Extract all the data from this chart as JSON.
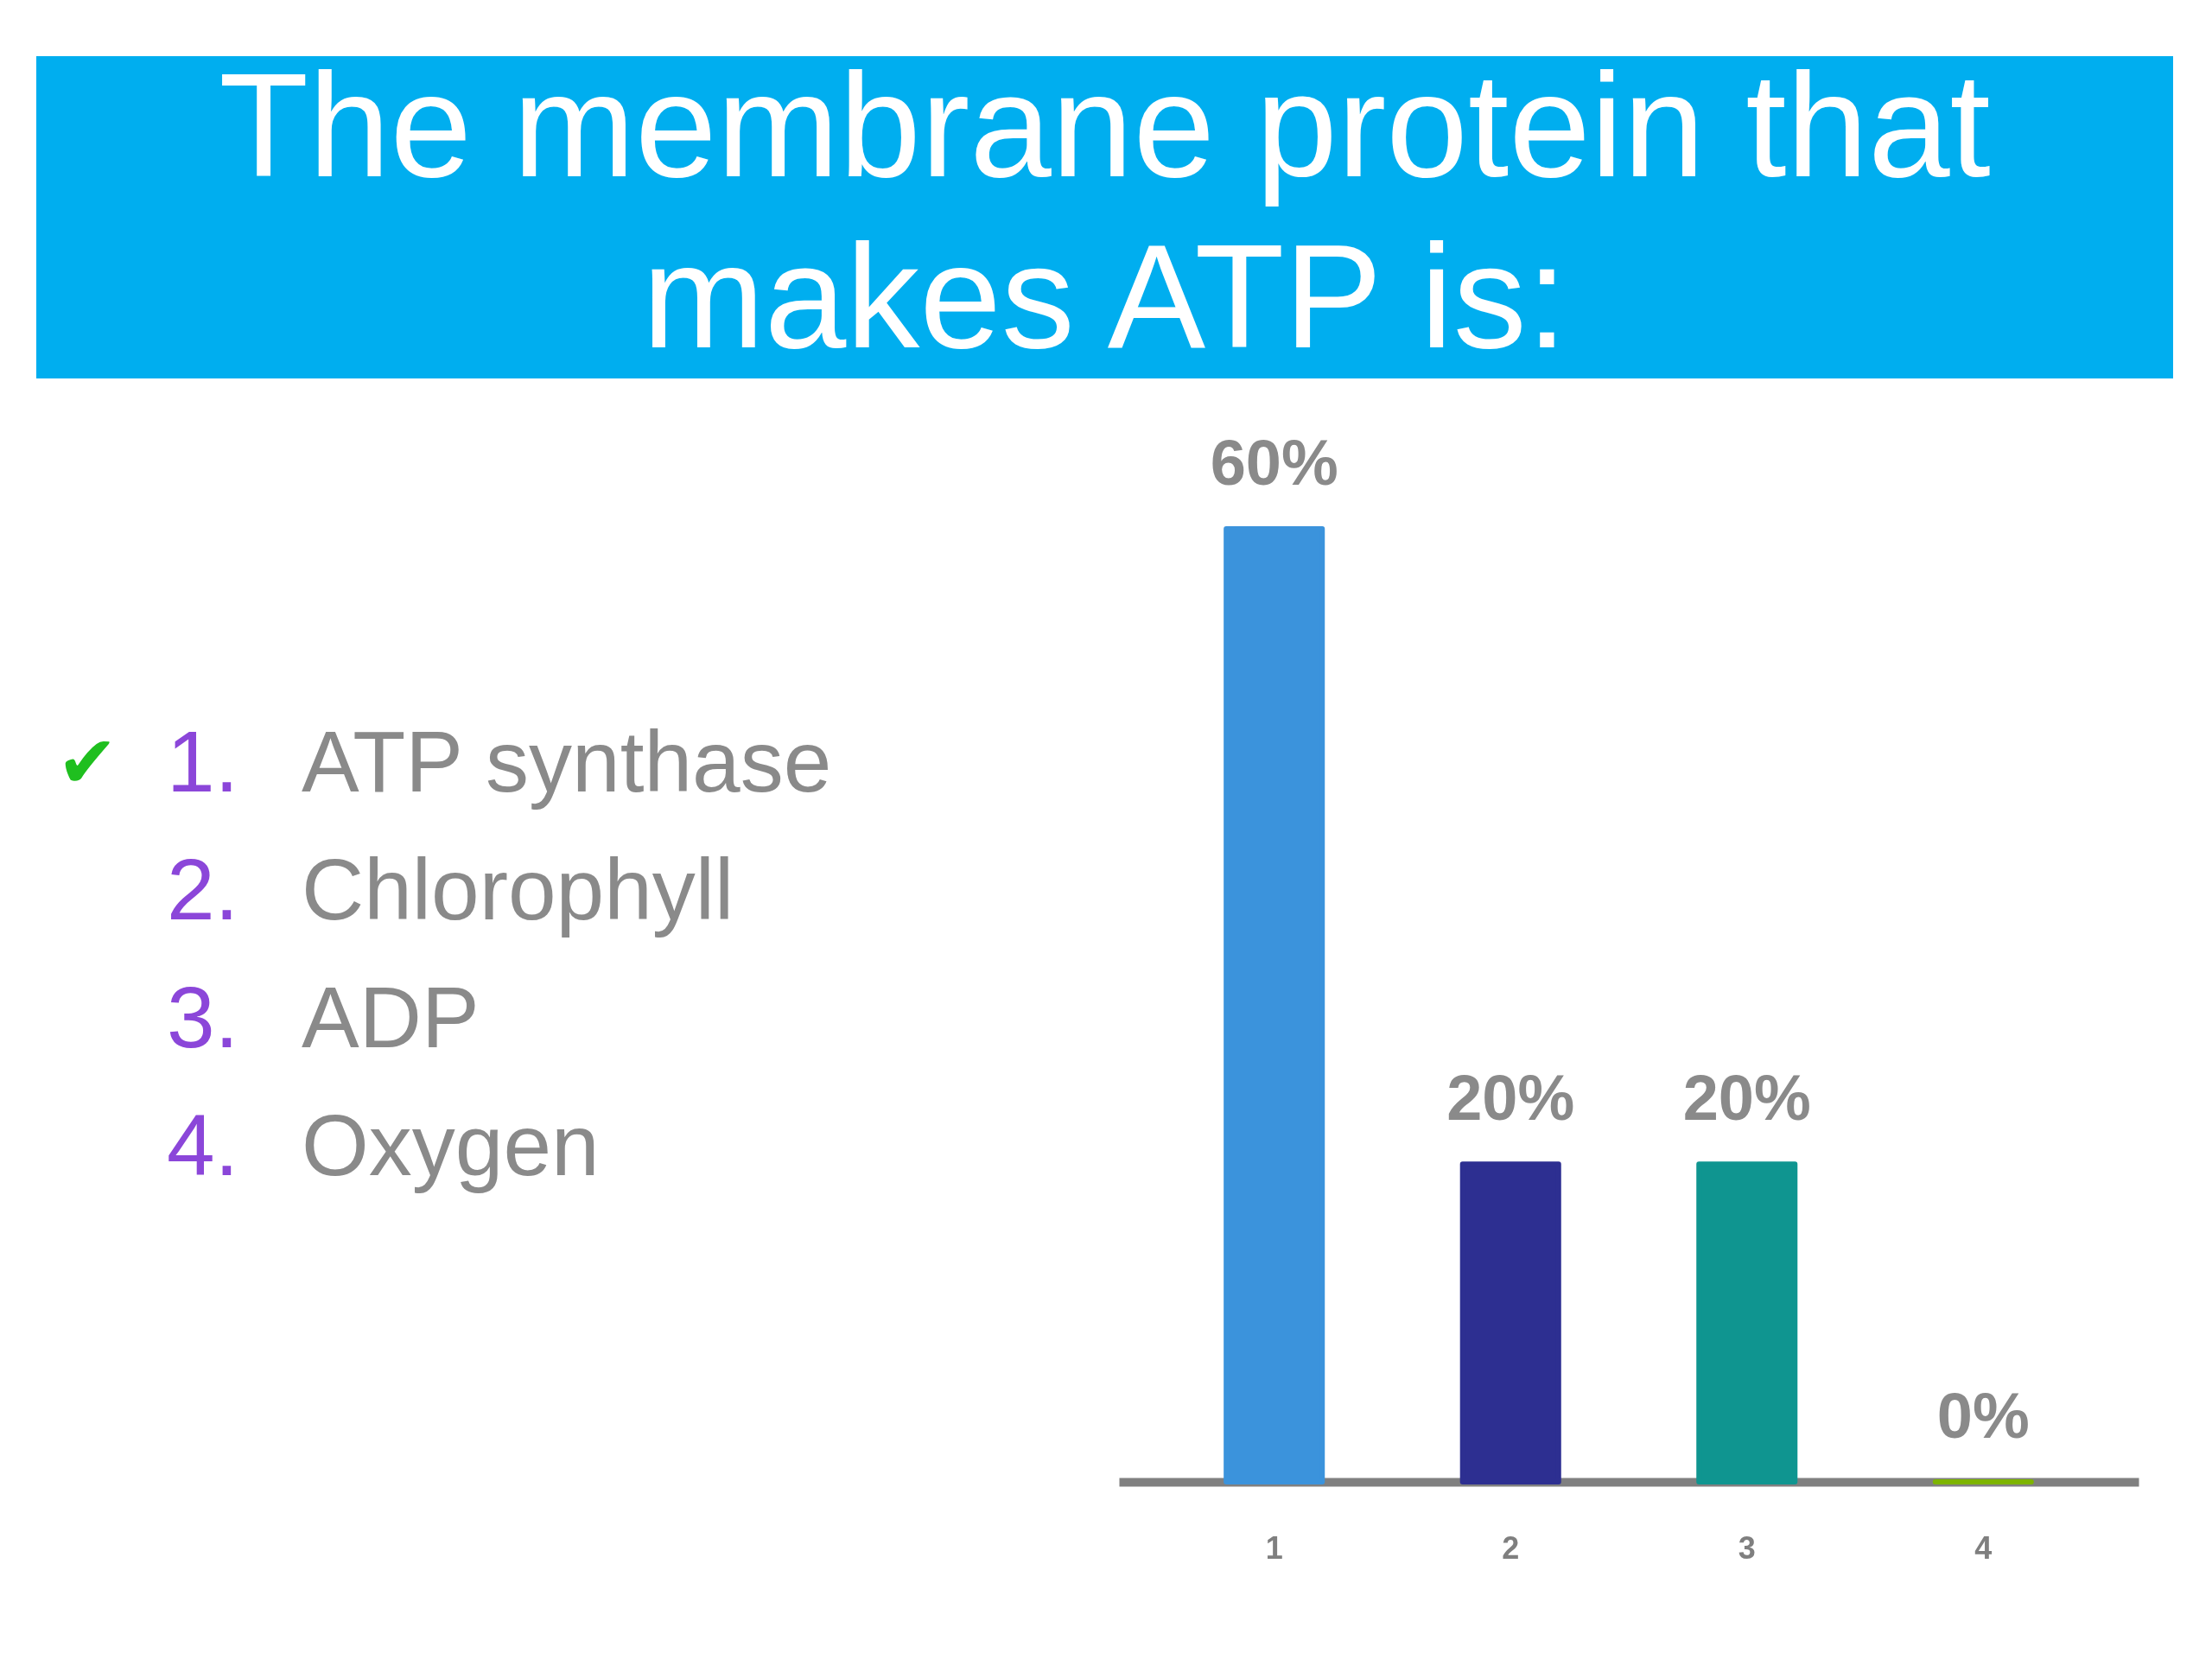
{
  "chart_data": {
    "type": "bar",
    "title": "The membrane protein that makes ATP is:",
    "categories": [
      "1",
      "2",
      "3",
      "4"
    ],
    "values": [
      60,
      20,
      20,
      0
    ],
    "colors": [
      "#3b93dc",
      "#2d2f91",
      "#0f9590",
      "#7db400"
    ],
    "value_labels": [
      "60%",
      "20%",
      "20%",
      "0%"
    ],
    "annotations": [
      "✔",
      "1. ATP synthase",
      "2. Chlorophyll",
      "3. ADP",
      "4. Oxygen"
    ],
    "tick_labels": "x",
    "grid": false,
    "legend": false
  }
}
